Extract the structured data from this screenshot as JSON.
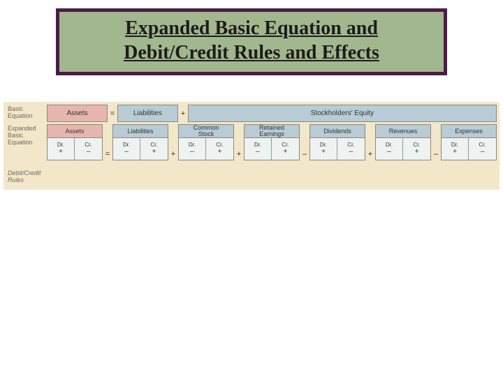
{
  "colors": {
    "title_border": "#4b1b4a",
    "title_bg": "#a3b78e",
    "title_text": "#1c1c1c",
    "diagram_bg": "#f3e7c9",
    "asset_bg": "#e6b6ae",
    "blue_bg": "#b9cbd4",
    "tbox_bg": "#eef2f0",
    "label_text": "#6a6760"
  },
  "typography": {
    "title_font": "Times New Roman",
    "title_fontsize_pt": 21,
    "title_weight": "bold",
    "title_underline": true,
    "diagram_font": "Arial",
    "label_fontsize_pt": 7,
    "header_fontsize_pt": 7.5,
    "dc_fontsize_pt": 6
  },
  "title": {
    "line1": "Expanded Basic Equation and",
    "line2": "Debit/Credit Rules and Effects"
  },
  "labels": {
    "basic1": "Basic",
    "basic2": "Equation",
    "expanded1": "Expanded",
    "expanded2": "Basic Equation",
    "rules1": "Debit/Credit",
    "rules2": "Rules"
  },
  "ops": {
    "eq": "=",
    "plus": "+",
    "minus": "–"
  },
  "basic": {
    "assets": "Assets",
    "liabilities": "Liabilities",
    "equity": "Stockholders' Equity"
  },
  "expanded": {
    "assets": "Assets",
    "liabilities": "Liabilities",
    "common_stock_1": "Common",
    "common_stock_2": "Stock",
    "retained_1": "Retained",
    "retained_2": "Earnings",
    "dividends": "Dividends",
    "revenues": "Revenues",
    "expenses": "Expenses"
  },
  "dc": {
    "dr": "Dr.",
    "cr": "Cr.",
    "plus": "+",
    "minus": "–"
  },
  "accounts": [
    {
      "name": "Assets",
      "dr_sign": "+",
      "cr_sign": "–",
      "after_op": "="
    },
    {
      "name": "Liabilities",
      "dr_sign": "–",
      "cr_sign": "+",
      "after_op": "+"
    },
    {
      "name": "Common Stock",
      "dr_sign": "–",
      "cr_sign": "+",
      "after_op": "+"
    },
    {
      "name": "Retained Earnings",
      "dr_sign": "–",
      "cr_sign": "+",
      "after_op": "–"
    },
    {
      "name": "Dividends",
      "dr_sign": "+",
      "cr_sign": "–",
      "after_op": "+"
    },
    {
      "name": "Revenues",
      "dr_sign": "–",
      "cr_sign": "+",
      "after_op": "–"
    },
    {
      "name": "Expenses",
      "dr_sign": "+",
      "cr_sign": "–",
      "after_op": null
    }
  ]
}
